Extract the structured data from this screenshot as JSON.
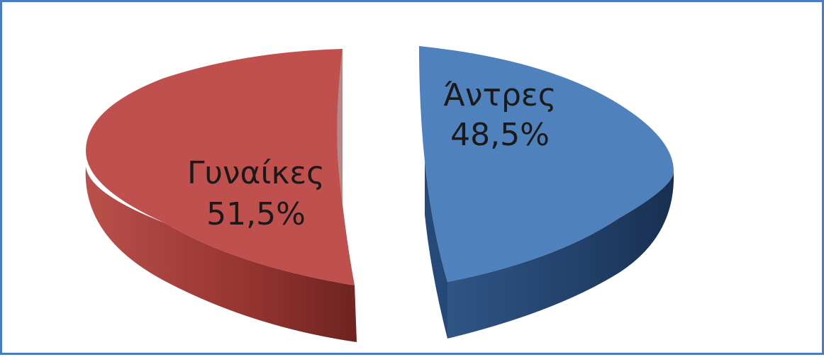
{
  "chart_data": {
    "type": "pie",
    "slices": [
      {
        "label": "Γυναίκες",
        "value": 51.5,
        "value_label": "51,5%",
        "color": "#c0504d",
        "side_color": "#8e2f2d"
      },
      {
        "label": "Άντρες",
        "value": 48.5,
        "value_label": "48,5%",
        "color": "#4f81bd",
        "side_color": "#2b4f7e"
      }
    ],
    "style": "3d-exploded",
    "border_color": "#4a7cc0"
  }
}
